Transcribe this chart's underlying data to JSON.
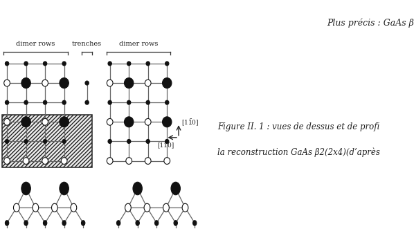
{
  "fig_width": 5.98,
  "fig_height": 3.34,
  "dpi": 100,
  "bg_color": "#ffffff",
  "label_dimer_rows": "dimer rows",
  "label_trenches": "trenches",
  "label_110": "[110]",
  "line_color": "#666666",
  "atom_open_color": "#ffffff",
  "atom_filled_color": "#111111",
  "caption_line1": "Figure II. 1 : vues de dessus et de profi",
  "caption_line2": "la reconstruction GaAs β2(2x4)(d’après",
  "header_text": "Plus précis : GaAs β"
}
